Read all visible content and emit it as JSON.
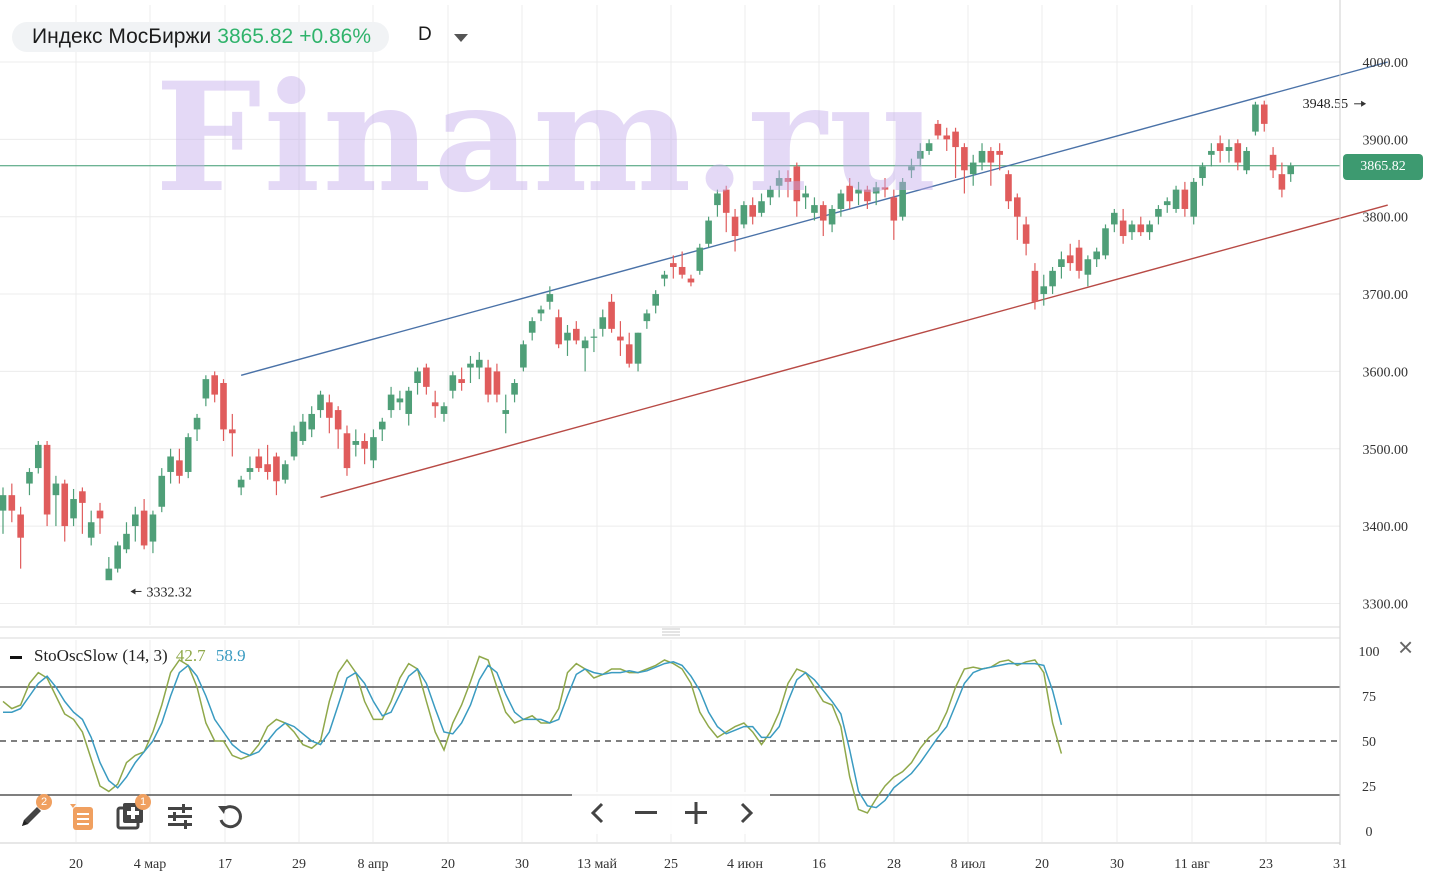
{
  "header": {
    "ticker_name": "Индекс МосБиржи",
    "last_price": "3865.82",
    "change_pct": "+0.86%",
    "timeframe": "D",
    "watermark": "Finam.ru"
  },
  "colors": {
    "up": "#4f9f78",
    "down": "#e05c5c",
    "upper_channel": "#4a72a8",
    "lower_channel": "#b84a45",
    "price_line": "#3d9a70",
    "stoch_k": "#8fa84a",
    "stoch_d": "#3a9bc1"
  },
  "indicator": {
    "name": "StoOscSlow (14, 3)",
    "k_value": "42.7",
    "d_value": "58.9",
    "close_label": "×"
  },
  "toolbar": {
    "pencil_badge": "2",
    "add_badge": "1",
    "icons": [
      "pencil-icon",
      "list-icon",
      "add-panel-icon",
      "settings-sliders-icon",
      "undo-icon",
      "chevron-left-icon",
      "minus-icon",
      "plus-icon",
      "chevron-right-icon"
    ]
  },
  "chart_data": [
    {
      "type": "candlestick",
      "title": "Индекс МосБиржи",
      "ylim": [
        3280,
        4040
      ],
      "y_ticks": [
        "4000.00",
        "3900.00",
        "3800.00",
        "3700.00",
        "3600.00",
        "3500.00",
        "3400.00",
        "3300.00"
      ],
      "y_tick_values": [
        4000,
        3900,
        3800,
        3700,
        3600,
        3500,
        3400,
        3300
      ],
      "x_ticks": [
        "20",
        "4 мар",
        "17",
        "29",
        "8 апр",
        "20",
        "30",
        "13 май",
        "25",
        "4 июн",
        "16",
        "28",
        "8 июл",
        "20",
        "30",
        "11 авг",
        "23",
        "31"
      ],
      "current_price": 3865.82,
      "current_price_label": "3865.82",
      "annotations": [
        {
          "label": "3332.32",
          "bar": 14,
          "value": 3332.32
        },
        {
          "label": "3948.55",
          "bar": 155,
          "value": 3948.55
        }
      ],
      "channel": {
        "upper": [
          [
            27,
            3595
          ],
          [
            157,
            4000
          ]
        ],
        "lower": [
          [
            36,
            3437
          ],
          [
            157,
            3815
          ]
        ]
      },
      "ohlc": [
        [
          3420,
          3450,
          3390,
          3440
        ],
        [
          3440,
          3455,
          3405,
          3420
        ],
        [
          3415,
          3425,
          3345,
          3385
        ],
        [
          3455,
          3475,
          3440,
          3470
        ],
        [
          3475,
          3510,
          3468,
          3505
        ],
        [
          3505,
          3510,
          3400,
          3415
        ],
        [
          3440,
          3465,
          3400,
          3455
        ],
        [
          3455,
          3460,
          3380,
          3400
        ],
        [
          3410,
          3448,
          3400,
          3435
        ],
        [
          3445,
          3450,
          3390,
          3430
        ],
        [
          3385,
          3420,
          3375,
          3405
        ],
        [
          3420,
          3430,
          3390,
          3410
        ],
        [
          3330,
          3360,
          3332,
          3345
        ],
        [
          3345,
          3380,
          3340,
          3375
        ],
        [
          3370,
          3405,
          3365,
          3390
        ],
        [
          3400,
          3425,
          3380,
          3415
        ],
        [
          3420,
          3435,
          3370,
          3375
        ],
        [
          3380,
          3420,
          3365,
          3415
        ],
        [
          3425,
          3475,
          3418,
          3465
        ],
        [
          3470,
          3500,
          3455,
          3490
        ],
        [
          3485,
          3500,
          3455,
          3465
        ],
        [
          3470,
          3520,
          3462,
          3515
        ],
        [
          3525,
          3545,
          3510,
          3540
        ],
        [
          3565,
          3595,
          3555,
          3590
        ],
        [
          3595,
          3600,
          3560,
          3570
        ],
        [
          3585,
          3590,
          3510,
          3525
        ],
        [
          3525,
          3545,
          3490,
          3520
        ],
        [
          3450,
          3465,
          3440,
          3460
        ],
        [
          3470,
          3490,
          3460,
          3475
        ],
        [
          3490,
          3500,
          3470,
          3475
        ],
        [
          3480,
          3505,
          3460,
          3470
        ],
        [
          3490,
          3495,
          3440,
          3458
        ],
        [
          3460,
          3485,
          3455,
          3480
        ],
        [
          3490,
          3530,
          3485,
          3522
        ],
        [
          3510,
          3545,
          3505,
          3535
        ],
        [
          3525,
          3555,
          3515,
          3545
        ],
        [
          3550,
          3575,
          3540,
          3570
        ],
        [
          3560,
          3570,
          3520,
          3540
        ],
        [
          3550,
          3555,
          3500,
          3525
        ],
        [
          3520,
          3530,
          3465,
          3475
        ],
        [
          3505,
          3525,
          3490,
          3510
        ],
        [
          3510,
          3520,
          3480,
          3500
        ],
        [
          3485,
          3525,
          3475,
          3515
        ],
        [
          3525,
          3540,
          3510,
          3535
        ],
        [
          3550,
          3580,
          3540,
          3570
        ],
        [
          3560,
          3575,
          3550,
          3565
        ],
        [
          3545,
          3580,
          3530,
          3575
        ],
        [
          3585,
          3605,
          3570,
          3600
        ],
        [
          3605,
          3610,
          3570,
          3580
        ],
        [
          3560,
          3575,
          3540,
          3555
        ],
        [
          3545,
          3560,
          3535,
          3555
        ],
        [
          3575,
          3600,
          3565,
          3595
        ],
        [
          3590,
          3605,
          3575,
          3585
        ],
        [
          3605,
          3620,
          3585,
          3610
        ],
        [
          3605,
          3625,
          3590,
          3615
        ],
        [
          3605,
          3615,
          3560,
          3570
        ],
        [
          3600,
          3610,
          3560,
          3570
        ],
        [
          3545,
          3570,
          3520,
          3550
        ],
        [
          3570,
          3590,
          3560,
          3585
        ],
        [
          3605,
          3640,
          3600,
          3635
        ],
        [
          3650,
          3670,
          3640,
          3665
        ],
        [
          3675,
          3685,
          3665,
          3680
        ],
        [
          3690,
          3710,
          3680,
          3700
        ],
        [
          3670,
          3680,
          3630,
          3635
        ],
        [
          3640,
          3660,
          3620,
          3650
        ],
        [
          3655,
          3665,
          3635,
          3640
        ],
        [
          3630,
          3645,
          3600,
          3640
        ],
        [
          3645,
          3655,
          3625,
          3645
        ],
        [
          3655,
          3680,
          3645,
          3670
        ],
        [
          3690,
          3700,
          3650,
          3655
        ],
        [
          3645,
          3665,
          3620,
          3640
        ],
        [
          3635,
          3650,
          3605,
          3610
        ],
        [
          3610,
          3650,
          3600,
          3650
        ],
        [
          3665,
          3680,
          3655,
          3675
        ],
        [
          3685,
          3705,
          3675,
          3700
        ],
        [
          3720,
          3730,
          3710,
          3725
        ],
        [
          3740,
          3750,
          3720,
          3735
        ],
        [
          3735,
          3755,
          3720,
          3725
        ],
        [
          3720,
          3725,
          3710,
          3715
        ],
        [
          3730,
          3765,
          3725,
          3760
        ],
        [
          3765,
          3800,
          3760,
          3795
        ],
        [
          3815,
          3835,
          3800,
          3830
        ],
        [
          3835,
          3840,
          3780,
          3805
        ],
        [
          3800,
          3810,
          3755,
          3775
        ],
        [
          3790,
          3820,
          3785,
          3815
        ],
        [
          3815,
          3825,
          3790,
          3800
        ],
        [
          3805,
          3830,
          3800,
          3820
        ],
        [
          3825,
          3840,
          3815,
          3835
        ],
        [
          3840,
          3860,
          3825,
          3850
        ],
        [
          3850,
          3860,
          3825,
          3845
        ],
        [
          3865,
          3870,
          3800,
          3820
        ],
        [
          3825,
          3840,
          3810,
          3830
        ],
        [
          3805,
          3825,
          3795,
          3815
        ],
        [
          3815,
          3820,
          3775,
          3795
        ],
        [
          3790,
          3815,
          3780,
          3810
        ],
        [
          3810,
          3835,
          3800,
          3830
        ],
        [
          3840,
          3850,
          3810,
          3820
        ],
        [
          3830,
          3845,
          3815,
          3835
        ],
        [
          3835,
          3840,
          3810,
          3820
        ],
        [
          3830,
          3845,
          3815,
          3838
        ],
        [
          3838,
          3850,
          3825,
          3835
        ],
        [
          3825,
          3835,
          3770,
          3795
        ],
        [
          3800,
          3850,
          3795,
          3845
        ],
        [
          3860,
          3875,
          3850,
          3865
        ],
        [
          3875,
          3895,
          3865,
          3885
        ],
        [
          3885,
          3900,
          3880,
          3895
        ],
        [
          3920,
          3925,
          3900,
          3905
        ],
        [
          3905,
          3915,
          3885,
          3900
        ],
        [
          3910,
          3915,
          3850,
          3890
        ],
        [
          3890,
          3895,
          3830,
          3860
        ],
        [
          3855,
          3880,
          3840,
          3870
        ],
        [
          3870,
          3895,
          3860,
          3885
        ],
        [
          3885,
          3890,
          3840,
          3870
        ],
        [
          3885,
          3895,
          3860,
          3880
        ],
        [
          3855,
          3860,
          3810,
          3820
        ],
        [
          3825,
          3830,
          3770,
          3800
        ],
        [
          3790,
          3800,
          3750,
          3765
        ],
        [
          3730,
          3740,
          3680,
          3690
        ],
        [
          3700,
          3725,
          3685,
          3710
        ],
        [
          3710,
          3735,
          3700,
          3730
        ],
        [
          3735,
          3755,
          3720,
          3745
        ],
        [
          3750,
          3765,
          3730,
          3740
        ],
        [
          3760,
          3770,
          3720,
          3730
        ],
        [
          3725,
          3750,
          3710,
          3745
        ],
        [
          3745,
          3760,
          3735,
          3755
        ],
        [
          3750,
          3790,
          3745,
          3785
        ],
        [
          3790,
          3810,
          3780,
          3805
        ],
        [
          3795,
          3810,
          3765,
          3775
        ],
        [
          3780,
          3795,
          3770,
          3790
        ],
        [
          3790,
          3800,
          3775,
          3780
        ],
        [
          3780,
          3795,
          3770,
          3790
        ],
        [
          3800,
          3815,
          3790,
          3810
        ],
        [
          3815,
          3825,
          3805,
          3820
        ],
        [
          3810,
          3840,
          3805,
          3835
        ],
        [
          3835,
          3845,
          3800,
          3810
        ],
        [
          3800,
          3850,
          3790,
          3845
        ],
        [
          3850,
          3870,
          3840,
          3865
        ],
        [
          3880,
          3895,
          3865,
          3885
        ],
        [
          3895,
          3905,
          3870,
          3885
        ],
        [
          3885,
          3900,
          3870,
          3890
        ],
        [
          3895,
          3900,
          3860,
          3870
        ],
        [
          3860,
          3890,
          3855,
          3885
        ],
        [
          3910,
          3948.55,
          3905,
          3945
        ],
        [
          3945,
          3950,
          3910,
          3920
        ],
        [
          3880,
          3890,
          3850,
          3860
        ],
        [
          3855,
          3870,
          3825,
          3835
        ],
        [
          3855,
          3870,
          3845,
          3866
        ]
      ]
    },
    {
      "type": "line",
      "title": "StoOscSlow (14, 3)",
      "ylim": [
        0,
        100
      ],
      "y_ticks": [
        "100",
        "75",
        "50",
        "25",
        "0"
      ],
      "y_tick_values": [
        100,
        75,
        50,
        25,
        0
      ],
      "levels": [
        80,
        50,
        20
      ],
      "series": [
        {
          "name": "42.7",
          "values": [
            72,
            68,
            70,
            82,
            88,
            85,
            75,
            65,
            62,
            55,
            40,
            25,
            22,
            26,
            38,
            42,
            44,
            55,
            70,
            88,
            95,
            92,
            80,
            60,
            50,
            50,
            42,
            40,
            42,
            48,
            58,
            62,
            60,
            55,
            48,
            46,
            50,
            72,
            88,
            95,
            88,
            72,
            62,
            62,
            72,
            85,
            93,
            90,
            72,
            55,
            45,
            60,
            70,
            83,
            97,
            95,
            80,
            66,
            60,
            62,
            64,
            60,
            60,
            68,
            88,
            93,
            90,
            85,
            87,
            90,
            90,
            88,
            88,
            90,
            92,
            95,
            93,
            90,
            82,
            66,
            58,
            52,
            55,
            58,
            60,
            55,
            48,
            55,
            66,
            82,
            90,
            88,
            80,
            72,
            70,
            58,
            30,
            12,
            10,
            18,
            25,
            30,
            33,
            38,
            46,
            52,
            56,
            66,
            80,
            90,
            91,
            90,
            91,
            94,
            95,
            92,
            94,
            95,
            88,
            60,
            43
          ]
        },
        {
          "name": "58.9",
          "values": [
            66,
            66,
            68,
            75,
            82,
            86,
            80,
            72,
            66,
            62,
            52,
            38,
            28,
            24,
            30,
            38,
            44,
            50,
            60,
            75,
            88,
            92,
            86,
            75,
            62,
            55,
            48,
            44,
            42,
            44,
            50,
            56,
            60,
            58,
            54,
            50,
            48,
            55,
            70,
            85,
            88,
            82,
            72,
            64,
            66,
            76,
            86,
            90,
            82,
            68,
            55,
            54,
            60,
            70,
            84,
            92,
            88,
            76,
            66,
            62,
            62,
            62,
            60,
            62,
            75,
            87,
            90,
            88,
            87,
            88,
            88,
            89,
            88,
            89,
            91,
            93,
            94,
            92,
            86,
            78,
            66,
            58,
            54,
            56,
            58,
            58,
            52,
            52,
            58,
            72,
            84,
            88,
            84,
            78,
            72,
            65,
            45,
            22,
            14,
            13,
            17,
            24,
            28,
            32,
            38,
            45,
            52,
            58,
            70,
            82,
            88,
            90,
            91,
            92,
            93,
            93,
            93,
            93,
            92,
            78,
            59
          ]
        }
      ]
    }
  ]
}
